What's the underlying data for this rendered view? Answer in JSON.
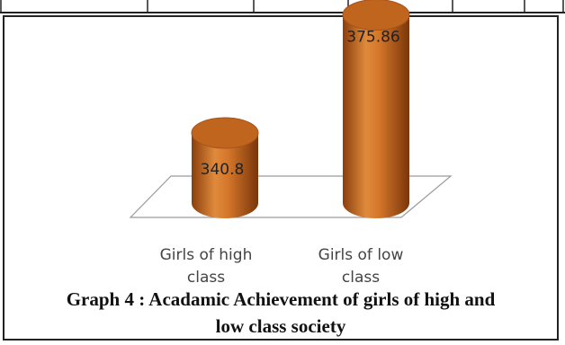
{
  "chart_data": {
    "type": "bar",
    "categories": [
      "Girls of high class",
      "Girls of low class"
    ],
    "category_lines": [
      [
        "Girls of high",
        "class"
      ],
      [
        "Girls of low",
        "class"
      ]
    ],
    "values": [
      340.8,
      375.86
    ],
    "value_labels": [
      "340.8",
      "375.86"
    ],
    "bar_style": "3d-cylinder",
    "bar_color": "#c0651d",
    "title": "",
    "xlabel": "",
    "ylabel": "",
    "ylim": [
      320,
      385
    ],
    "grid": false,
    "legend": "none"
  },
  "caption": {
    "line1": "Graph 4 : Acadamic Achievement of girls of high and",
    "line2": "low class society"
  }
}
